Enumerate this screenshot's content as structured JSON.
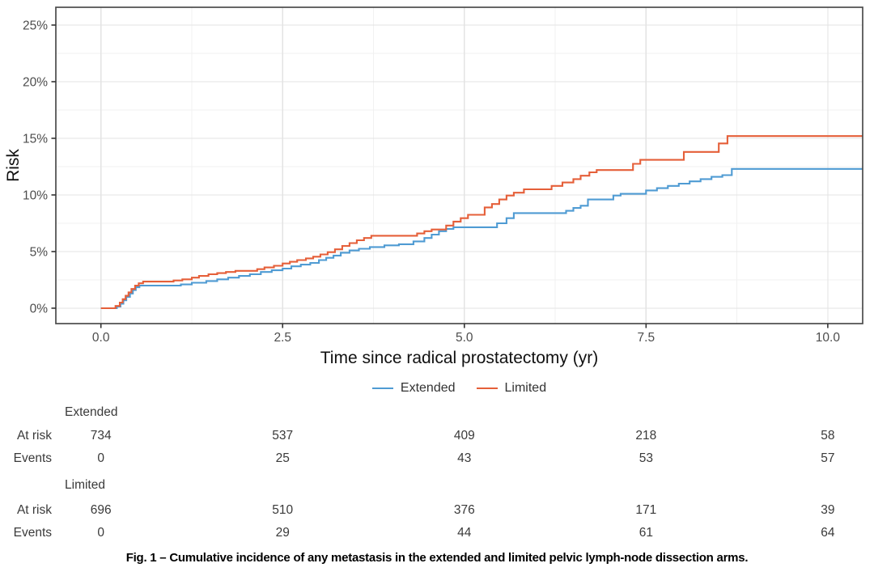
{
  "caption": "Fig. 1 – Cumulative incidence of any metastasis in the extended and limited pelvic lymph-node dissection arms.",
  "legend": {
    "items": [
      {
        "label": "Extended",
        "color": "#4f9bd3"
      },
      {
        "label": "Limited",
        "color": "#e55f39"
      }
    ]
  },
  "risk_table": {
    "row_labels": {
      "at_risk": "At risk",
      "events": "Events"
    },
    "groups": [
      {
        "name": "Extended",
        "at_risk": [
          "734",
          "537",
          "409",
          "218",
          "58"
        ],
        "events": [
          "0",
          "25",
          "43",
          "53",
          "57"
        ]
      },
      {
        "name": "Limited",
        "at_risk": [
          "696",
          "510",
          "376",
          "171",
          "39"
        ],
        "events": [
          "0",
          "29",
          "44",
          "61",
          "64"
        ]
      }
    ]
  },
  "chart_data": {
    "type": "line",
    "step": true,
    "title": "",
    "xlabel": "Time since radical prostatectomy (yr)",
    "ylabel": "Risk",
    "xlim": [
      -0.62,
      10.48
    ],
    "ylim": [
      -1.36,
      26.57
    ],
    "x_ticks": [
      0,
      2.5,
      5,
      7.5,
      10
    ],
    "x_tick_labels": [
      "0.0",
      "2.5",
      "5.0",
      "7.5",
      "10.0"
    ],
    "y_ticks": [
      0,
      5,
      10,
      15,
      20,
      25
    ],
    "y_tick_labels": [
      "0%",
      "5%",
      "10%",
      "15%",
      "20%",
      "25%"
    ],
    "grid": true,
    "legend_position": "bottom",
    "colors": {
      "grid_major": "#e3e3e3",
      "grid_minor": "#f1f1f1",
      "panel_border": "#4b4b4b",
      "tick_mark": "#333333"
    },
    "series": [
      {
        "name": "Extended",
        "color": "#4f9bd3",
        "points": [
          [
            0,
            0
          ],
          [
            0.22,
            0.15
          ],
          [
            0.27,
            0.4
          ],
          [
            0.31,
            0.7
          ],
          [
            0.35,
            1.0
          ],
          [
            0.4,
            1.3
          ],
          [
            0.44,
            1.6
          ],
          [
            0.48,
            1.85
          ],
          [
            0.53,
            2.0
          ],
          [
            1.1,
            2.1
          ],
          [
            1.25,
            2.25
          ],
          [
            1.45,
            2.4
          ],
          [
            1.6,
            2.55
          ],
          [
            1.75,
            2.7
          ],
          [
            1.9,
            2.85
          ],
          [
            2.05,
            3.0
          ],
          [
            2.2,
            3.2
          ],
          [
            2.35,
            3.35
          ],
          [
            2.5,
            3.5
          ],
          [
            2.62,
            3.7
          ],
          [
            2.75,
            3.85
          ],
          [
            2.88,
            4.0
          ],
          [
            3.0,
            4.25
          ],
          [
            3.1,
            4.45
          ],
          [
            3.2,
            4.65
          ],
          [
            3.3,
            4.9
          ],
          [
            3.42,
            5.1
          ],
          [
            3.55,
            5.25
          ],
          [
            3.7,
            5.4
          ],
          [
            3.9,
            5.55
          ],
          [
            4.1,
            5.65
          ],
          [
            4.3,
            5.9
          ],
          [
            4.45,
            6.2
          ],
          [
            4.55,
            6.5
          ],
          [
            4.65,
            6.8
          ],
          [
            4.75,
            7.0
          ],
          [
            4.85,
            7.15
          ],
          [
            5.45,
            7.5
          ],
          [
            5.58,
            7.95
          ],
          [
            5.68,
            8.4
          ],
          [
            6.4,
            8.6
          ],
          [
            6.5,
            8.85
          ],
          [
            6.6,
            9.05
          ],
          [
            6.7,
            9.6
          ],
          [
            7.05,
            9.95
          ],
          [
            7.15,
            10.1
          ],
          [
            7.5,
            10.4
          ],
          [
            7.65,
            10.6
          ],
          [
            7.8,
            10.8
          ],
          [
            7.95,
            11.0
          ],
          [
            8.1,
            11.2
          ],
          [
            8.25,
            11.4
          ],
          [
            8.4,
            11.6
          ],
          [
            8.55,
            11.75
          ],
          [
            8.68,
            12.3
          ],
          [
            10.48,
            12.3
          ]
        ]
      },
      {
        "name": "Limited",
        "color": "#e55f39",
        "points": [
          [
            0,
            0
          ],
          [
            0.2,
            0.2
          ],
          [
            0.26,
            0.5
          ],
          [
            0.3,
            0.8
          ],
          [
            0.34,
            1.1
          ],
          [
            0.38,
            1.4
          ],
          [
            0.42,
            1.7
          ],
          [
            0.47,
            2.0
          ],
          [
            0.52,
            2.2
          ],
          [
            0.58,
            2.35
          ],
          [
            1.0,
            2.45
          ],
          [
            1.12,
            2.55
          ],
          [
            1.25,
            2.7
          ],
          [
            1.35,
            2.85
          ],
          [
            1.48,
            3.0
          ],
          [
            1.6,
            3.1
          ],
          [
            1.72,
            3.2
          ],
          [
            1.85,
            3.3
          ],
          [
            2.15,
            3.45
          ],
          [
            2.25,
            3.6
          ],
          [
            2.38,
            3.75
          ],
          [
            2.5,
            3.95
          ],
          [
            2.6,
            4.1
          ],
          [
            2.7,
            4.25
          ],
          [
            2.82,
            4.4
          ],
          [
            2.92,
            4.55
          ],
          [
            3.02,
            4.75
          ],
          [
            3.12,
            4.95
          ],
          [
            3.22,
            5.2
          ],
          [
            3.32,
            5.5
          ],
          [
            3.42,
            5.75
          ],
          [
            3.52,
            6.0
          ],
          [
            3.62,
            6.2
          ],
          [
            3.72,
            6.4
          ],
          [
            4.35,
            6.6
          ],
          [
            4.45,
            6.8
          ],
          [
            4.55,
            6.95
          ],
          [
            4.75,
            7.3
          ],
          [
            4.85,
            7.65
          ],
          [
            4.95,
            7.95
          ],
          [
            5.05,
            8.25
          ],
          [
            5.28,
            8.9
          ],
          [
            5.38,
            9.2
          ],
          [
            5.48,
            9.6
          ],
          [
            5.58,
            9.95
          ],
          [
            5.68,
            10.2
          ],
          [
            5.82,
            10.5
          ],
          [
            6.2,
            10.8
          ],
          [
            6.35,
            11.1
          ],
          [
            6.5,
            11.4
          ],
          [
            6.6,
            11.7
          ],
          [
            6.72,
            12.0
          ],
          [
            6.82,
            12.2
          ],
          [
            7.32,
            12.75
          ],
          [
            7.42,
            13.1
          ],
          [
            8.02,
            13.8
          ],
          [
            8.5,
            14.55
          ],
          [
            8.62,
            15.2
          ],
          [
            10.48,
            15.2
          ]
        ]
      }
    ]
  }
}
